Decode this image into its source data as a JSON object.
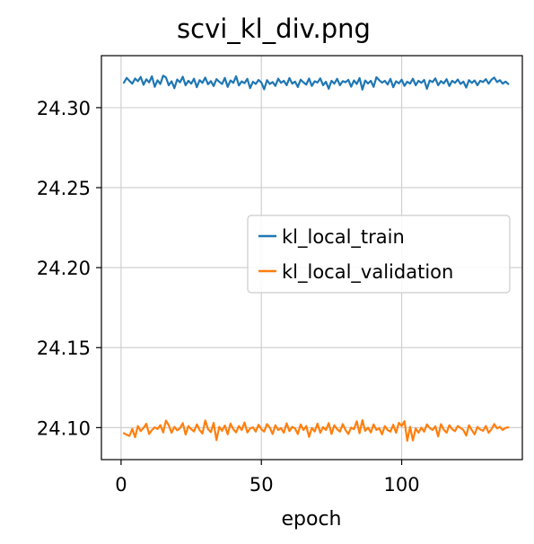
{
  "chart_data": {
    "type": "line",
    "title": "scvi_kl_div.png",
    "xlabel": "epoch",
    "ylabel": "",
    "xlim": [
      -7,
      143
    ],
    "ylim": [
      24.08,
      24.3325
    ],
    "xticks": [
      0,
      50,
      100
    ],
    "yticks": [
      24.1,
      24.15,
      24.2,
      24.25,
      24.3
    ],
    "xtick_labels": [
      "0",
      "50",
      "100"
    ],
    "ytick_labels": [
      "24.10",
      "24.15",
      "24.20",
      "24.25",
      "24.30"
    ],
    "grid": true,
    "legend_position": "center-right",
    "x_start": 1,
    "series": [
      {
        "name": "kl_local_train",
        "color": "#1f77b4",
        "values": [
          24.3156,
          24.3186,
          24.3167,
          24.315,
          24.3182,
          24.3165,
          24.3192,
          24.3143,
          24.3177,
          24.3158,
          24.3196,
          24.313,
          24.3171,
          24.3148,
          24.32,
          24.3189,
          24.314,
          24.3165,
          24.3122,
          24.3176,
          24.3158,
          24.3193,
          24.314,
          24.3168,
          24.315,
          24.3181,
          24.3128,
          24.3172,
          24.3155,
          24.3188,
          24.3146,
          24.3166,
          24.3135,
          24.3178,
          24.3162,
          24.3148,
          24.3186,
          24.313,
          24.317,
          24.3155,
          24.3196,
          24.3139,
          24.3164,
          24.3153,
          24.318,
          24.3122,
          24.3162,
          24.3148,
          24.3173,
          24.3157,
          24.3115,
          24.3172,
          24.3148,
          24.316,
          24.3136,
          24.3181,
          24.3155,
          24.3168,
          24.314,
          24.3185,
          24.315,
          24.3163,
          24.3129,
          24.3175,
          24.3158,
          24.3144,
          24.3182,
          24.3136,
          24.3165,
          24.3157,
          24.3183,
          24.314,
          24.3162,
          24.3118,
          24.3168,
          24.315,
          24.318,
          24.314,
          24.3166,
          24.3159,
          24.3174,
          24.3131,
          24.317,
          24.3148,
          24.3185,
          24.3113,
          24.317,
          24.3151,
          24.3168,
          24.313,
          24.319,
          24.3172,
          24.3156,
          24.3168,
          24.3145,
          24.318,
          24.3128,
          24.3165,
          24.3152,
          24.3175,
          24.3136,
          24.3162,
          24.315,
          24.3181,
          24.314,
          24.3168,
          24.3155,
          24.3173,
          24.3118,
          24.317,
          24.316,
          24.3183,
          24.314,
          24.3166,
          24.3152,
          24.3178,
          24.3135,
          24.3168,
          24.3155,
          24.3176,
          24.3148,
          24.3163,
          24.3126,
          24.3172,
          24.3155,
          24.317,
          24.314,
          24.3168,
          24.316,
          24.3178,
          24.315,
          24.3175,
          24.3188,
          24.316,
          24.3172,
          24.315,
          24.3163,
          24.3148
        ]
      },
      {
        "name": "kl_local_validation",
        "color": "#ff7f0e",
        "values": [
          24.0965,
          24.0955,
          24.0948,
          24.0992,
          24.094,
          24.101,
          24.0978,
          24.0998,
          24.1024,
          24.096,
          24.0985,
          24.1002,
          24.0991,
          24.1016,
          24.097,
          24.1044,
          24.1015,
          24.0968,
          24.1005,
          24.0983,
          24.0996,
          24.1028,
          24.0957,
          24.101,
          24.099,
          24.0976,
          24.102,
          24.0985,
          24.0963,
          24.1045,
          24.0991,
          24.0972,
          24.103,
          24.0922,
          24.1005,
          24.098,
          24.1013,
          24.0958,
          24.1025,
          24.099,
          24.097,
          24.101,
          24.0985,
          24.1032,
          24.097,
          24.0995,
          24.1002,
          24.0975,
          24.1018,
          24.099,
          24.0975,
          24.1022,
          24.1,
          24.096,
          24.1015,
          24.0985,
          24.0997,
          24.0968,
          24.1027,
          24.0978,
          24.1005,
          24.0995,
          24.096,
          24.102,
          24.0985,
          24.101,
          24.0942,
          24.0998,
          24.0976,
          24.1025,
          24.0968,
          24.1003,
          24.0985,
          24.1028,
          24.096,
          24.1015,
          24.099,
          24.0975,
          24.1022,
          24.0985,
          24.096,
          24.1,
          24.099,
          24.104,
          24.0965,
          24.1046,
          24.098,
          24.1,
          24.097,
          24.102,
          24.0985,
          24.0997,
          24.0958,
          24.101,
          24.0985,
          24.0975,
          24.1018,
          24.0968,
          24.103,
          24.101,
          24.104,
          24.0918,
          24.1005,
          24.092,
          24.0995,
          24.0968,
          24.1,
          24.0975,
          24.102,
          24.0998,
          24.0985,
          24.1008,
          24.0945,
          24.1022,
          24.0987,
          24.0968,
          24.1015,
          24.099,
          24.0978,
          24.101,
          24.0998,
          24.0985,
          24.095,
          24.1015,
          24.0985,
          24.0958,
          24.1005,
          24.0988,
          24.098,
          24.101,
          24.0968,
          24.099,
          24.1022,
          24.0995,
          24.1005,
          24.0985,
          24.0998,
          24.1002
        ]
      }
    ]
  }
}
